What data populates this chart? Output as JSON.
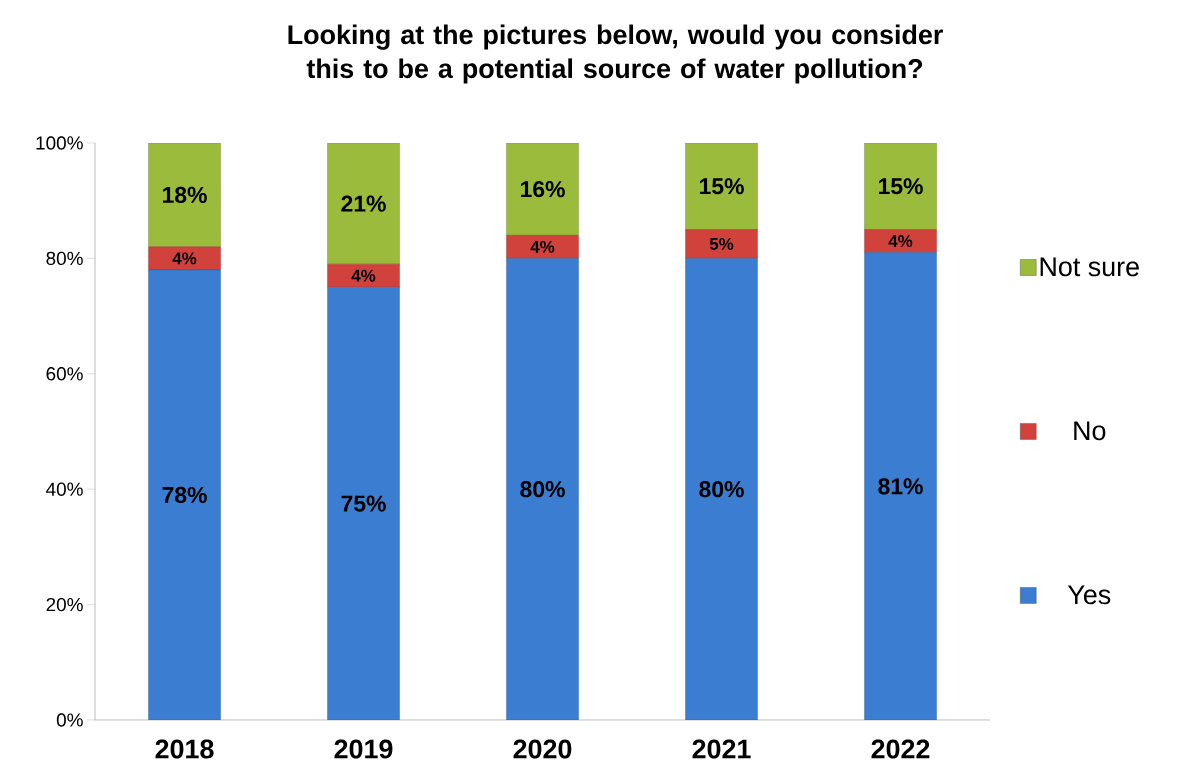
{
  "chart_data": {
    "type": "bar",
    "title": "Looking at the pictures below, would you consider this to be a potential source of water pollution?",
    "categories": [
      "2018",
      "2019",
      "2020",
      "2021",
      "2022"
    ],
    "stacked": true,
    "series": [
      {
        "name": "Yes",
        "color": "#3b7dd0",
        "values": [
          78,
          75,
          80,
          80,
          81
        ],
        "value_labels": [
          "78%",
          "75%",
          "80%",
          "80%",
          "81%"
        ]
      },
      {
        "name": "No",
        "color": "#d2423d",
        "values": [
          4,
          4,
          4,
          5,
          4
        ],
        "value_labels": [
          "4%",
          "4%",
          "4%",
          "5%",
          "4%"
        ]
      },
      {
        "name": "Not sure",
        "color": "#9bbb3c",
        "values": [
          18,
          21,
          16,
          15,
          15
        ],
        "value_labels": [
          "18%",
          "21%",
          "16%",
          "15%",
          "15%"
        ]
      }
    ],
    "ylim": [
      0,
      100
    ],
    "yticks": [
      {
        "value": 0,
        "label": "0%"
      },
      {
        "value": 20,
        "label": "20%"
      },
      {
        "value": 40,
        "label": "40%"
      },
      {
        "value": 60,
        "label": "60%"
      },
      {
        "value": 80,
        "label": "80%"
      },
      {
        "value": 100,
        "label": "100%"
      }
    ],
    "legend": "right",
    "grid": false
  }
}
